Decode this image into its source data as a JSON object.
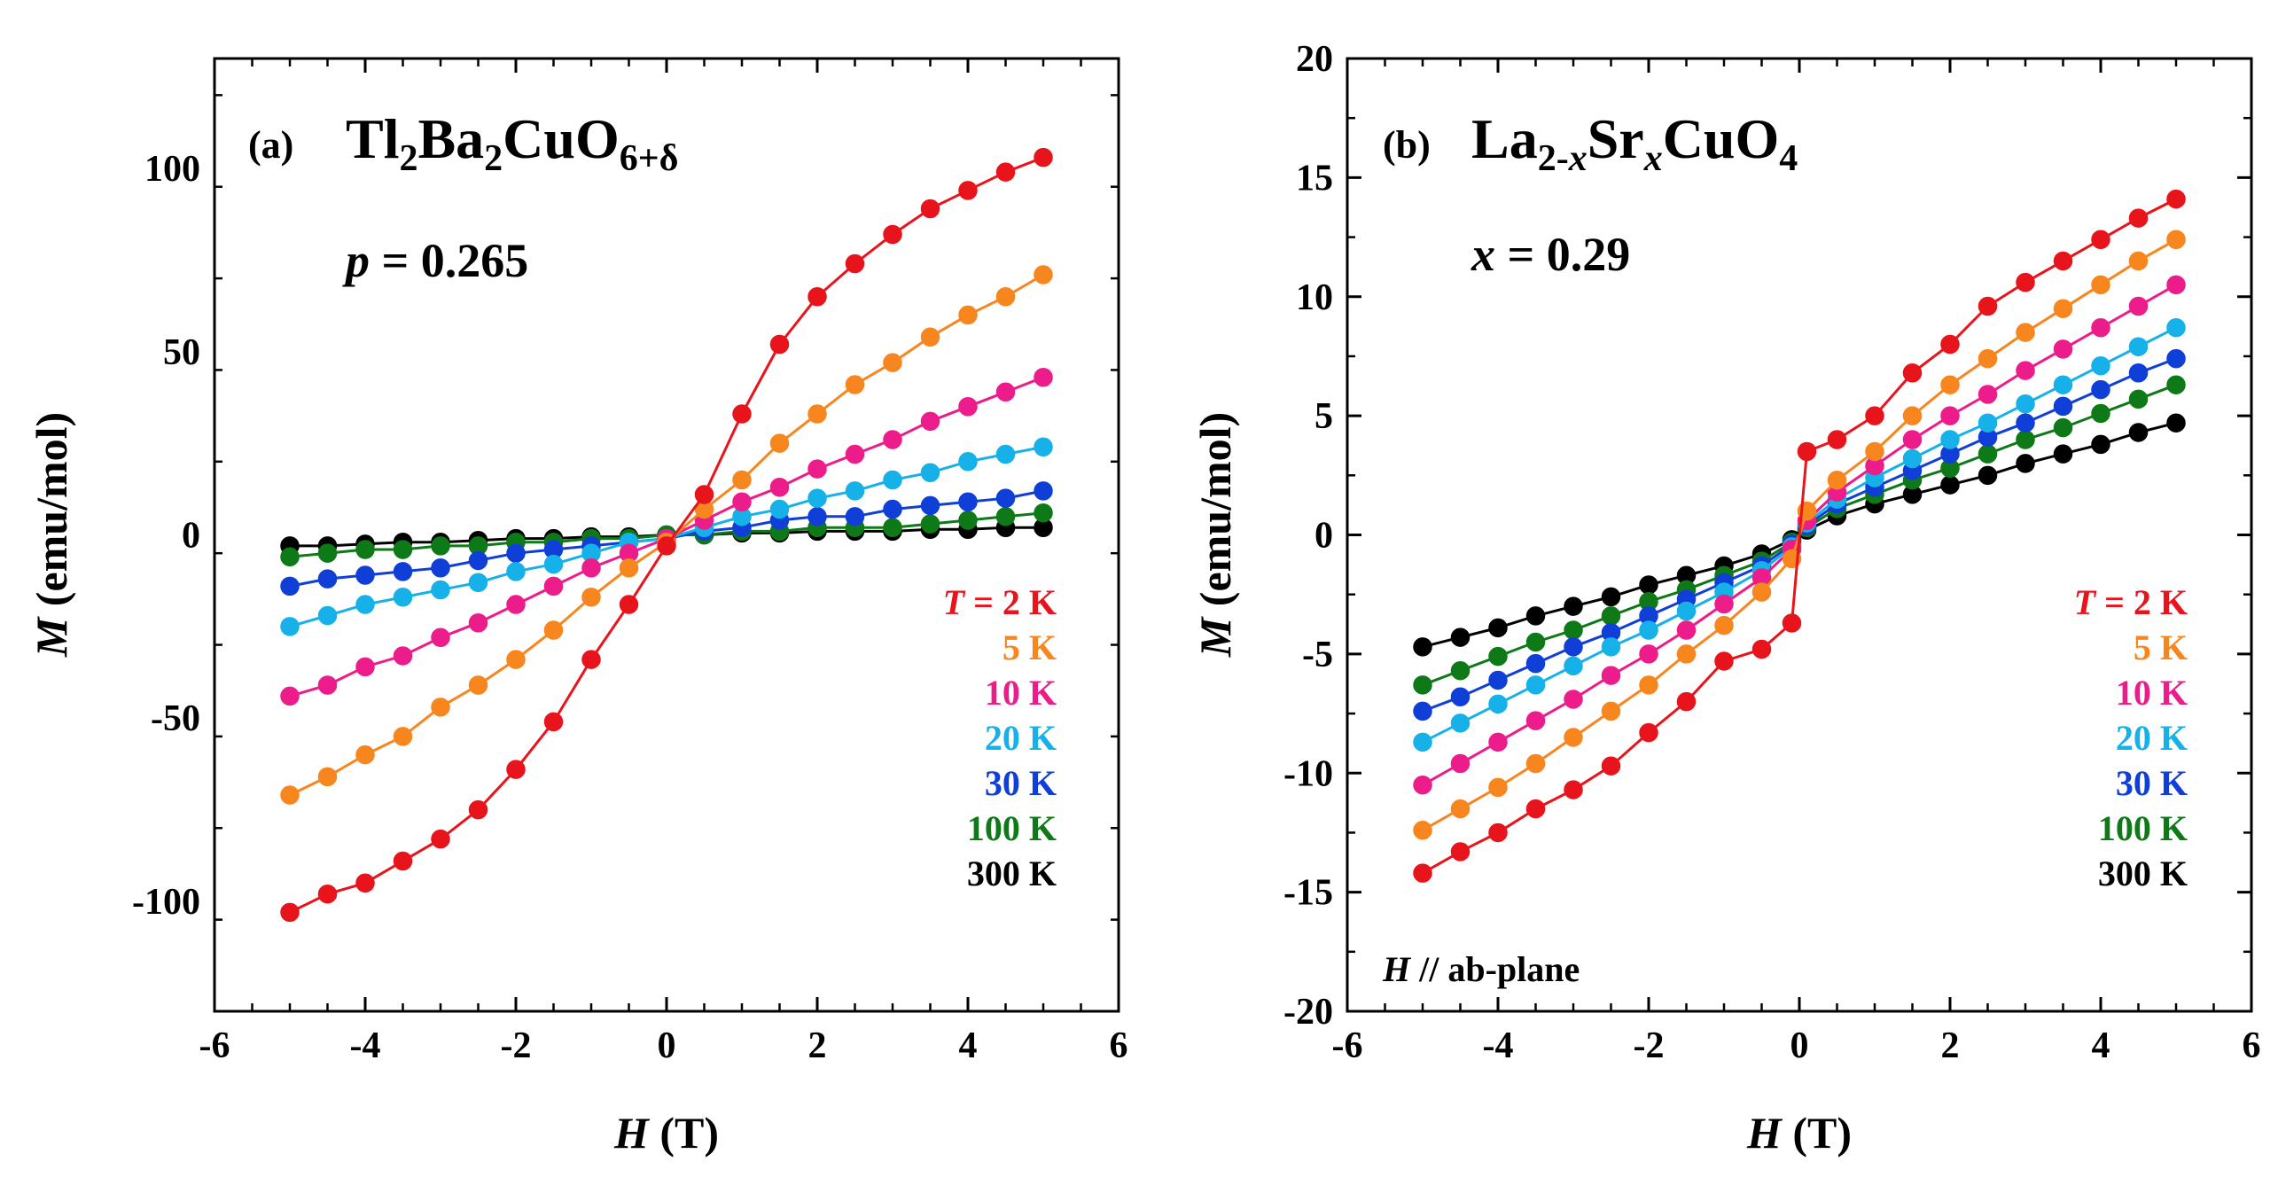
{
  "chart_data": [
    {
      "type": "line",
      "panel_label": "(a)",
      "title": {
        "main": "Tl",
        "s1": "2",
        "m2": "Ba",
        "s2": "2",
        "m3": "CuO",
        "s3": "6+δ"
      },
      "parameter": {
        "symbol": "p",
        "text": " = 0.265"
      },
      "xlabel": {
        "symbol": "H",
        "text": " (T)"
      },
      "ylabel": {
        "symbol": "M",
        "text": " (emu/mol)"
      },
      "xlim": [
        -6,
        6
      ],
      "ylim": [
        -130,
        130
      ],
      "xticks": [
        -6,
        -4,
        -2,
        0,
        2,
        4,
        6
      ],
      "yticks": [
        -100,
        -50,
        0,
        50,
        100
      ],
      "note": "",
      "legend": [
        {
          "label": "T = 2 K",
          "color": "#e8141c",
          "italic_prefix": "T"
        },
        {
          "label": "5 K",
          "color": "#f7861e"
        },
        {
          "label": "10 K",
          "color": "#ec1d8b"
        },
        {
          "label": "20 K",
          "color": "#16b1e8"
        },
        {
          "label": "30 K",
          "color": "#0f3fd6"
        },
        {
          "label": "100 K",
          "color": "#0e7a17"
        },
        {
          "label": "300 K",
          "color": "#000000"
        }
      ],
      "x": [
        -5,
        -4.5,
        -4,
        -3.5,
        -3,
        -2.5,
        -2,
        -1.5,
        -1,
        -0.5,
        0,
        0.5,
        1,
        1.5,
        2,
        2.5,
        3,
        3.5,
        4,
        4.5,
        5
      ],
      "series": [
        {
          "name": "2 K",
          "color": "#e8141c",
          "values": [
            -103,
            -98,
            -95,
            -89,
            -83,
            -75,
            -64,
            -51,
            -34,
            -19,
            -3,
            11,
            33,
            52,
            65,
            74,
            82,
            89,
            94,
            99,
            103
          ]
        },
        {
          "name": "5 K",
          "color": "#f7861e",
          "values": [
            -71,
            -66,
            -60,
            -55,
            -47,
            -41,
            -34,
            -26,
            -17,
            -9,
            -2,
            7,
            15,
            25,
            33,
            41,
            47,
            54,
            60,
            65,
            71
          ]
        },
        {
          "name": "10 K",
          "color": "#ec1d8b",
          "values": [
            -44,
            -41,
            -36,
            -33,
            -28,
            -24,
            -19,
            -14,
            -9,
            -5,
            -1,
            4,
            9,
            13,
            18,
            22,
            26,
            31,
            35,
            39,
            43
          ]
        },
        {
          "name": "20 K",
          "color": "#16b1e8",
          "values": [
            -25,
            -22,
            -19,
            -17,
            -15,
            -13,
            -10,
            -8,
            -5,
            -2,
            -1,
            2,
            5,
            7,
            10,
            12,
            15,
            17,
            20,
            22,
            24
          ]
        },
        {
          "name": "30 K",
          "color": "#0f3fd6",
          "values": [
            -14,
            -12,
            -11,
            -10,
            -9,
            -7,
            -5,
            -4,
            -3,
            -2,
            -1,
            1,
            2,
            4,
            5,
            5,
            7,
            8,
            9,
            10,
            12
          ]
        },
        {
          "name": "100 K",
          "color": "#0e7a17",
          "values": [
            -6,
            -5,
            -4,
            -4,
            -3,
            -3,
            -2,
            -2,
            -1,
            -1,
            0,
            0,
            1,
            1,
            2,
            2,
            2,
            3,
            4,
            5,
            6
          ]
        },
        {
          "name": "300 K",
          "color": "#000000",
          "values": [
            -3,
            -3,
            -2.5,
            -2,
            -2,
            -1.5,
            -1,
            -1,
            -0.5,
            -0.5,
            0,
            0,
            0.5,
            0.5,
            1,
            1,
            1,
            1.5,
            1.5,
            2,
            2
          ]
        }
      ]
    },
    {
      "type": "line",
      "panel_label": "(b)",
      "title": {
        "main": "La",
        "s1": "2-",
        "s1i": "x",
        "m2": "Sr",
        "s2i": "x",
        "m3": "CuO",
        "s3": "4"
      },
      "parameter": {
        "symbol": "x",
        "text": " = 0.29"
      },
      "xlabel": {
        "symbol": "H",
        "text": " (T)"
      },
      "ylabel": {
        "symbol": "M",
        "text": " (emu/mol)"
      },
      "xlim": [
        -6,
        6
      ],
      "ylim": [
        -20,
        20
      ],
      "xticks": [
        -6,
        -4,
        -2,
        0,
        2,
        4,
        6
      ],
      "yticks": [
        -20,
        -15,
        -10,
        -5,
        0,
        5,
        10,
        15,
        20
      ],
      "note": {
        "symbol": "H",
        "text": " // ab-plane"
      },
      "legend": [
        {
          "label": "T = 2 K",
          "color": "#e8141c",
          "italic_prefix": "T"
        },
        {
          "label": "5 K",
          "color": "#f7861e"
        },
        {
          "label": "10 K",
          "color": "#ec1d8b"
        },
        {
          "label": "20 K",
          "color": "#16b1e8"
        },
        {
          "label": "30 K",
          "color": "#0f3fd6"
        },
        {
          "label": "100 K",
          "color": "#0e7a17"
        },
        {
          "label": "300 K",
          "color": "#000000"
        }
      ],
      "x": [
        -5,
        -4.5,
        -4,
        -3.5,
        -3,
        -2.5,
        -2,
        -1.5,
        -1,
        -0.5,
        -0.1,
        0.1,
        0.5,
        1,
        1.5,
        2,
        2.5,
        3,
        3.5,
        4,
        4.5,
        5
      ],
      "series": [
        {
          "name": "2 K",
          "color": "#e8141c",
          "values": [
            -14.2,
            -13.3,
            -12.5,
            -11.5,
            -10.7,
            -9.7,
            -8.3,
            -7.0,
            -5.3,
            -4.8,
            -3.7,
            3.5,
            4.0,
            5.0,
            6.8,
            8.0,
            9.6,
            10.6,
            11.5,
            12.4,
            13.3,
            14.1
          ]
        },
        {
          "name": "5 K",
          "color": "#f7861e",
          "values": [
            -12.4,
            -11.5,
            -10.6,
            -9.6,
            -8.5,
            -7.4,
            -6.3,
            -5.0,
            -3.8,
            -2.4,
            -1.0,
            1.0,
            2.3,
            3.5,
            5.0,
            6.3,
            7.4,
            8.5,
            9.5,
            10.5,
            11.5,
            12.4
          ]
        },
        {
          "name": "10 K",
          "color": "#ec1d8b",
          "values": [
            -10.5,
            -9.6,
            -8.7,
            -7.8,
            -6.9,
            -5.9,
            -5.0,
            -4.0,
            -2.9,
            -1.8,
            -0.6,
            0.6,
            1.8,
            2.9,
            4.0,
            5.0,
            5.9,
            6.9,
            7.8,
            8.7,
            9.6,
            10.5
          ]
        },
        {
          "name": "20 K",
          "color": "#16b1e8",
          "values": [
            -8.7,
            -7.9,
            -7.1,
            -6.3,
            -5.5,
            -4.7,
            -4.0,
            -3.2,
            -2.4,
            -1.5,
            -0.5,
            0.5,
            1.5,
            2.4,
            3.2,
            4.0,
            4.7,
            5.5,
            6.3,
            7.1,
            7.9,
            8.7
          ]
        },
        {
          "name": "30 K",
          "color": "#0f3fd6",
          "values": [
            -7.4,
            -6.8,
            -6.1,
            -5.4,
            -4.7,
            -4.1,
            -3.4,
            -2.7,
            -2.0,
            -1.3,
            -0.4,
            0.4,
            1.3,
            2.0,
            2.7,
            3.4,
            4.1,
            4.7,
            5.4,
            6.1,
            6.8,
            7.4
          ]
        },
        {
          "name": "100 K",
          "color": "#0e7a17",
          "values": [
            -6.3,
            -5.7,
            -5.1,
            -4.5,
            -4.0,
            -3.4,
            -2.8,
            -2.3,
            -1.7,
            -1.1,
            -0.3,
            0.3,
            1.1,
            1.7,
            2.3,
            2.8,
            3.4,
            4.0,
            4.5,
            5.1,
            5.7,
            6.3
          ]
        },
        {
          "name": "300 K",
          "color": "#000000",
          "values": [
            -4.7,
            -4.3,
            -3.9,
            -3.4,
            -3.0,
            -2.6,
            -2.1,
            -1.7,
            -1.3,
            -0.8,
            -0.2,
            0.2,
            0.8,
            1.3,
            1.7,
            2.1,
            2.5,
            3.0,
            3.4,
            3.8,
            4.3,
            4.7
          ]
        }
      ]
    }
  ]
}
